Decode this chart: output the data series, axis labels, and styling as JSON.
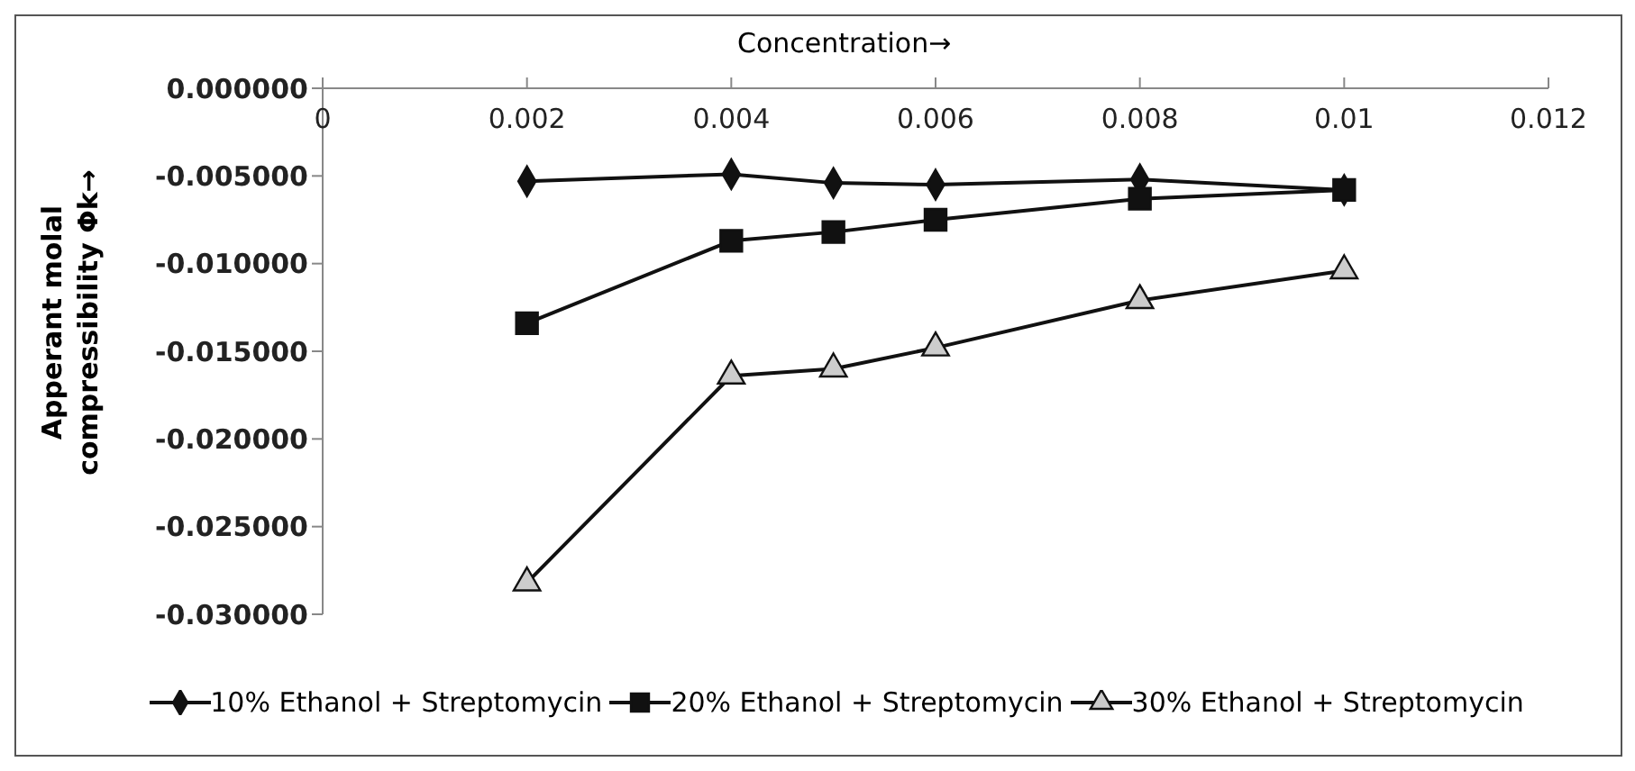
{
  "chart_data": {
    "type": "line",
    "xlabel": "Concentration→",
    "ylabel": "Apperant molal compressibility Φk→",
    "x": [
      0.002,
      0.004,
      0.005,
      0.006,
      0.008,
      0.01
    ],
    "xlim": [
      0,
      0.012
    ],
    "xticks": [
      0,
      0.002,
      0.004,
      0.006,
      0.008,
      0.01,
      0.012
    ],
    "ylim": [
      -0.03,
      0
    ],
    "yticks": [
      {
        "value": -0.03,
        "label": "-0.030000"
      },
      {
        "value": -0.025,
        "label": "-0.025000"
      },
      {
        "value": -0.02,
        "label": "-0.020000"
      },
      {
        "value": -0.015,
        "label": "-0.015000"
      },
      {
        "value": -0.01,
        "label": "-0.010000"
      },
      {
        "value": -0.005,
        "label": "-0.005000"
      },
      {
        "value": 0,
        "label": "0.000000"
      }
    ],
    "grid": false,
    "legend": "bottom",
    "series": [
      {
        "name": "10% Ethanol + Streptomycin",
        "color": "#111111",
        "marker": "diamond",
        "values": [
          -0.0053,
          -0.0049,
          -0.0054,
          -0.0055,
          -0.0052,
          -0.0058
        ]
      },
      {
        "name": "20% Ethanol + Streptomycin",
        "color": "#111111",
        "marker": "square",
        "values": [
          -0.0134,
          -0.0087,
          -0.0082,
          -0.0075,
          -0.0063,
          -0.0058
        ]
      },
      {
        "name": "30% Ethanol + Streptomycin",
        "color": "#111111",
        "marker": "triangle",
        "values": [
          -0.0282,
          -0.0164,
          -0.016,
          -0.0148,
          -0.0121,
          -0.0104
        ]
      }
    ]
  }
}
